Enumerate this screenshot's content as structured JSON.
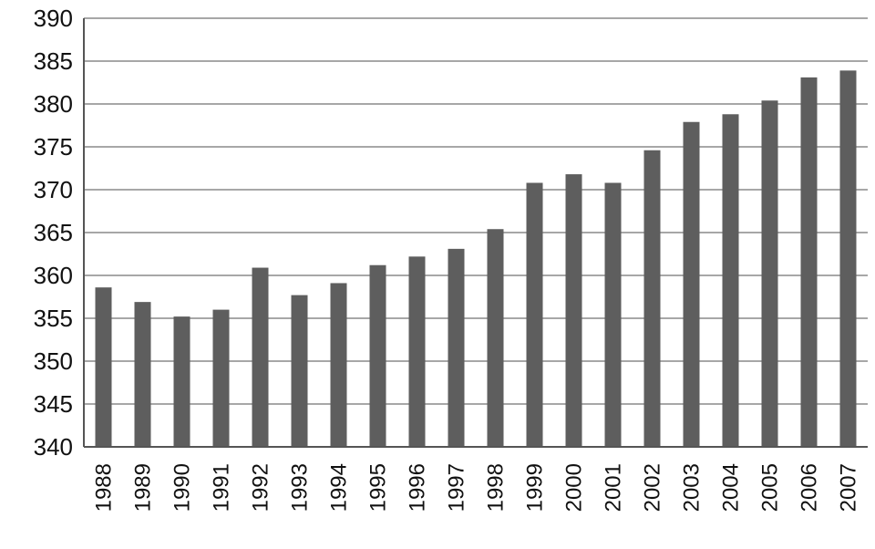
{
  "chart_data": {
    "type": "bar",
    "categories": [
      "1988",
      "1989",
      "1990",
      "1991",
      "1992",
      "1993",
      "1994",
      "1995",
      "1996",
      "1997",
      "1998",
      "1999",
      "2000",
      "2001",
      "2002",
      "2003",
      "2004",
      "2005",
      "2006",
      "2007"
    ],
    "values": [
      358.6,
      356.9,
      355.2,
      356.0,
      360.9,
      357.7,
      359.1,
      361.2,
      362.2,
      363.1,
      365.4,
      370.8,
      371.8,
      370.8,
      374.6,
      377.9,
      378.8,
      380.4,
      383.1,
      383.9
    ],
    "title": "",
    "xlabel": "",
    "ylabel": "",
    "ylim": [
      340,
      390
    ],
    "yticks": [
      340,
      345,
      350,
      355,
      360,
      365,
      370,
      375,
      380,
      385,
      390
    ],
    "grid": true,
    "legend": "none",
    "bar_color": "#5e5e5e",
    "grid_color": "#8a8a8a"
  }
}
